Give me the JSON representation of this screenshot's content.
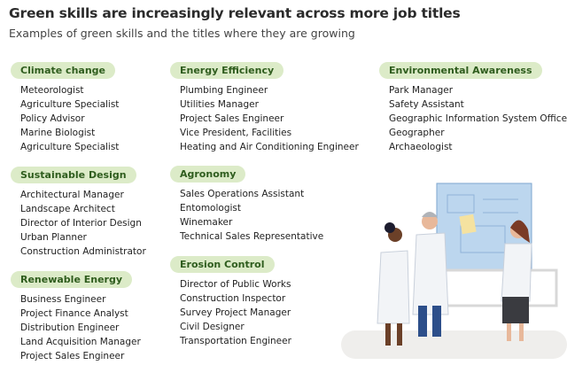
{
  "header": {
    "title": "Green skills are increasingly relevant across more job titles",
    "subtitle": "Examples of green skills and the titles where they are growing"
  },
  "groups": [
    {
      "label": "Climate change",
      "items": [
        "Meteorologist",
        "Agriculture Specialist",
        "Policy Advisor",
        "Marine Biologist",
        "Agriculture Specialist"
      ]
    },
    {
      "label": "Sustainable Design",
      "items": [
        "Architectural Manager",
        "Landscape Architect",
        "Director of Interior Design",
        "Urban Planner",
        "Construction Administrator"
      ]
    },
    {
      "label": "Renewable Energy",
      "items": [
        "Business Engineer",
        "Project Finance Analyst",
        "Distribution Engineer",
        "Land Acquisition Manager",
        "Project Sales Engineer"
      ]
    },
    {
      "label": "Energy Efficiency",
      "items": [
        "Plumbing Engineer",
        "Utilities Manager",
        "Project Sales Engineer",
        "Vice President, Facilities",
        "Heating and Air Conditioning Engineer"
      ]
    },
    {
      "label": "Agronomy",
      "items": [
        "Sales Operations Assistant",
        "Entomologist",
        "Winemaker",
        "Technical Sales Representative"
      ]
    },
    {
      "label": "Erosion Control",
      "items": [
        "Director of Public Works",
        "Construction Inspector",
        "Survey Project Manager",
        "Civil Designer",
        "Transportation Engineer"
      ]
    },
    {
      "label": "Environmental Awareness",
      "items": [
        "Park Manager",
        "Safety Assistant",
        "Geographic Information System Officer",
        "Geographer",
        "Archaeologist"
      ]
    }
  ]
}
